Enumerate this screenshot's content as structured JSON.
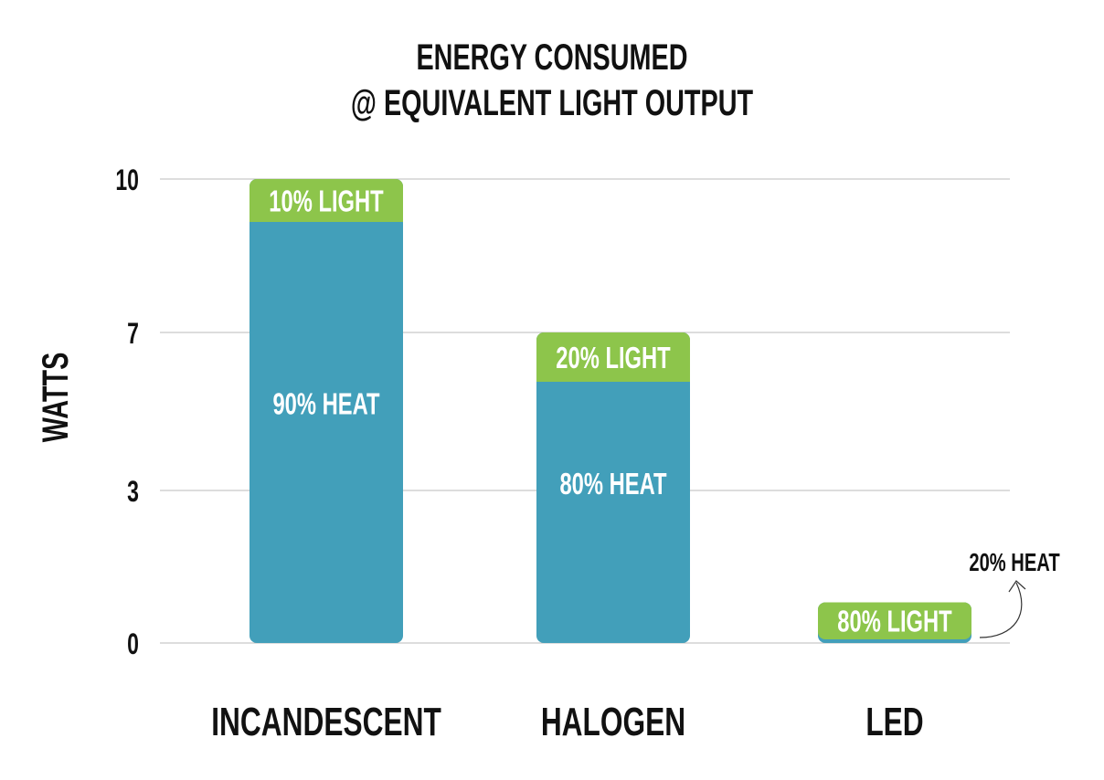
{
  "chart_data": {
    "type": "bar",
    "stacked": true,
    "title": [
      "ENERGY CONSUMED",
      "@ EQUIVALENT LIGHT OUTPUT"
    ],
    "xlabel": "",
    "ylabel": "WATTS",
    "yticks": [
      0,
      3,
      7,
      10
    ],
    "ylim": [
      0,
      10
    ],
    "grid": true,
    "categories": [
      "INCANDESCENT",
      "HALOGEN",
      "LED"
    ],
    "totals": [
      10,
      7,
      0.8
    ],
    "series": [
      {
        "name": "HEAT",
        "percent": [
          90,
          80,
          20
        ],
        "color": "#429fba"
      },
      {
        "name": "LIGHT",
        "percent": [
          10,
          20,
          80
        ],
        "color": "#8dc54b"
      }
    ],
    "labels": {
      "heat": [
        "90% HEAT",
        "80% HEAT",
        "20% HEAT"
      ],
      "light": [
        "10% LIGHT",
        "20% LIGHT",
        "80% LIGHT"
      ]
    },
    "annotation": {
      "text": "20% HEAT",
      "target": "LED"
    }
  }
}
